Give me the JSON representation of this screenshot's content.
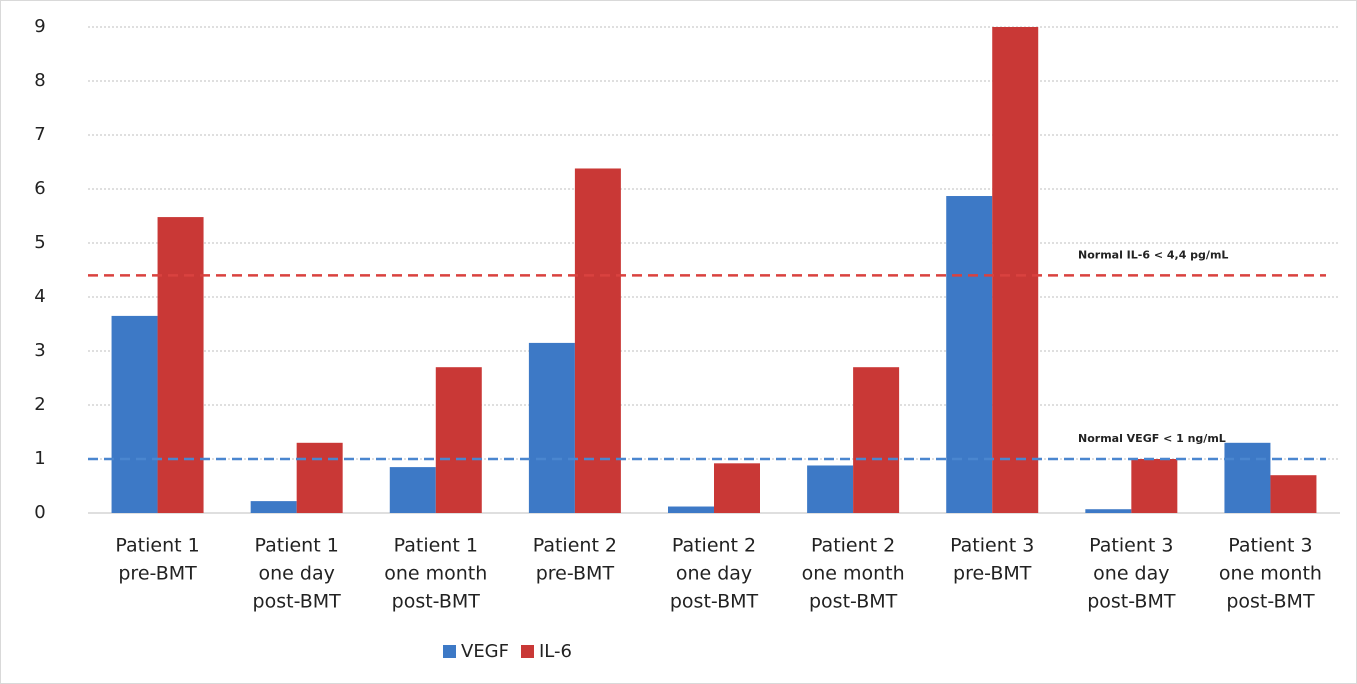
{
  "chart_data": {
    "type": "bar",
    "categories": [
      [
        "Patient 1",
        "pre-BMT"
      ],
      [
        "Patient 1",
        "one day",
        "post-BMT"
      ],
      [
        "Patient 1",
        "one month",
        "post-BMT"
      ],
      [
        "Patient 2",
        "pre-BMT"
      ],
      [
        "Patient 2",
        "one day",
        "post-BMT"
      ],
      [
        "Patient 2",
        "one month",
        "post-BMT"
      ],
      [
        "Patient 3",
        "pre-BMT"
      ],
      [
        "Patient 3",
        "one day",
        "post-BMT"
      ],
      [
        "Patient 3",
        "one month",
        "post-BMT"
      ]
    ],
    "series": [
      {
        "name": "VEGF",
        "color": "#3d79c6",
        "values": [
          3.65,
          0.22,
          0.85,
          3.15,
          0.12,
          0.88,
          5.87,
          0.07,
          1.3
        ]
      },
      {
        "name": "IL-6",
        "color": "#c93836",
        "values": [
          5.48,
          1.3,
          2.7,
          6.38,
          0.92,
          2.7,
          9.0,
          1.0,
          0.7
        ]
      }
    ],
    "ylim": [
      0,
      9
    ],
    "yticks": [
      0,
      1,
      2,
      3,
      4,
      5,
      6,
      7,
      8,
      9
    ],
    "grid": true,
    "legend": "bottom",
    "reference_lines": [
      {
        "value": 4.4,
        "label": "Normal IL-6 < 4,4 pg/mL",
        "color": "#d9423f"
      },
      {
        "value": 1,
        "label": "Normal VEGF < 1 ng/mL",
        "color": "#4a86cf"
      }
    ]
  }
}
